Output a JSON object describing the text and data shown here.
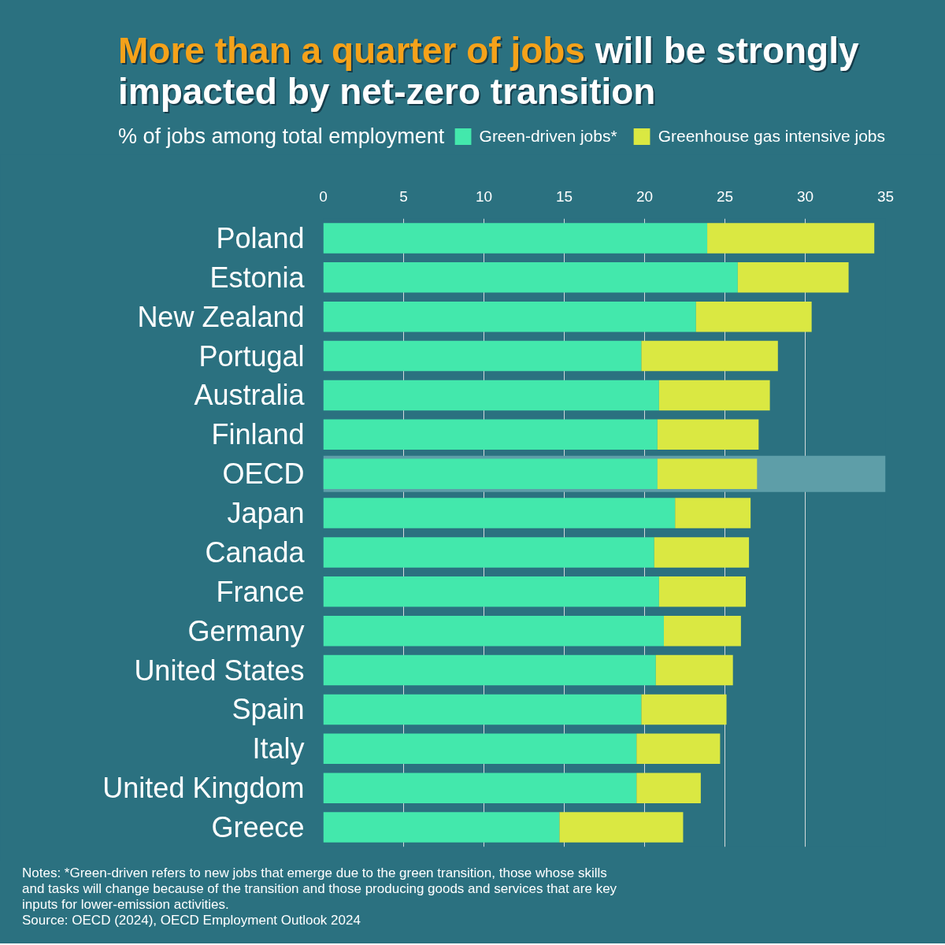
{
  "chart_data": {
    "type": "bar",
    "orientation": "horizontal",
    "stacked": true,
    "title": "More than a quarter of jobs will be strongly impacted by net-zero transition",
    "subtitle": "% of jobs among total employment",
    "categories": [
      "Poland",
      "Estonia",
      "New Zealand",
      "Portugal",
      "Australia",
      "Finland",
      "OECD",
      "Japan",
      "Canada",
      "France",
      "Germany",
      "United States",
      "Spain",
      "Italy",
      "United Kingdom",
      "Greece"
    ],
    "series": [
      {
        "name": "Green-driven jobs*",
        "color": "#43e8ac",
        "values": [
          23.9,
          25.8,
          23.2,
          19.8,
          20.9,
          20.8,
          20.8,
          21.9,
          20.6,
          20.9,
          21.2,
          20.7,
          19.8,
          19.5,
          19.5,
          14.7
        ]
      },
      {
        "name": "Greenhouse gas intensive jobs",
        "color": "#dae842",
        "values": [
          10.4,
          6.9,
          7.2,
          8.5,
          6.9,
          6.3,
          6.2,
          4.7,
          5.9,
          5.4,
          4.8,
          4.8,
          5.3,
          5.2,
          4.0,
          7.7
        ]
      }
    ],
    "xlim": [
      0,
      35
    ],
    "xticks": [
      0,
      5,
      10,
      15,
      20,
      25,
      30,
      35
    ],
    "grid": "x",
    "legend": "top right",
    "bands": [
      {
        "axis": "y",
        "from": "OECD",
        "to": "OECD",
        "color": "#5e9ea8"
      }
    ],
    "annotations": [
      "Notes: *Green-driven refers to new jobs that emerge due to the green transition, those whose skills and tasks will change because of the transition and those producing goods and services that are key inputs for lower-emission activities.",
      "Source: OECD (2024), OECD Employment Outlook 2024"
    ]
  }
}
